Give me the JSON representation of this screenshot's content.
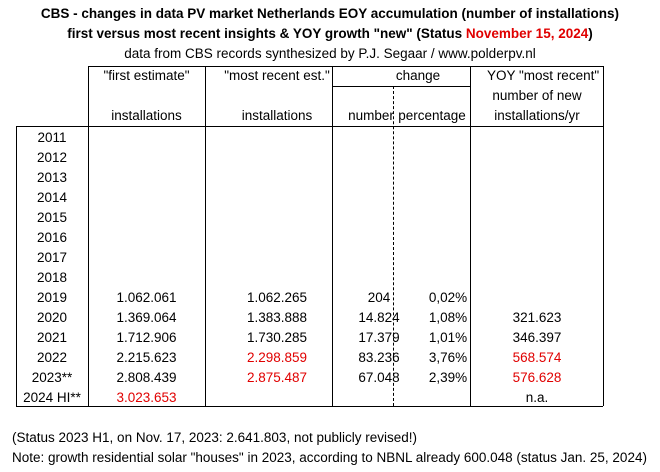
{
  "title": {
    "line1": "CBS - changes in data PV market Netherlands EOY accumulation (number of installations)",
    "line2_prefix": "first versus most recent insights & YOY growth \"new\" (Status ",
    "line2_status_date": "November 15, 2024",
    "line2_suffix": ")",
    "line3": "data from CBS records synthesized by P.J. Segaar / www.polderpv.nl"
  },
  "header": {
    "first_estimate": "\"first estimate\"",
    "most_recent_est": "\"most recent est.\"",
    "change": "change",
    "yoy_line1": "YOY \"most recent\"",
    "yoy_line2": "number  of new",
    "installations_first": "installations",
    "installations_recent": "installations",
    "number": "number",
    "percentage": "percentage",
    "yoy_line3": "installations/yr"
  },
  "colors": {
    "highlight": "#e00000",
    "text": "#000000"
  },
  "rows": [
    {
      "year": "2011",
      "first": "",
      "recent": "",
      "number": "",
      "pct": "",
      "yoy": ""
    },
    {
      "year": "2012",
      "first": "",
      "recent": "",
      "number": "",
      "pct": "",
      "yoy": ""
    },
    {
      "year": "2013",
      "first": "",
      "recent": "",
      "number": "",
      "pct": "",
      "yoy": ""
    },
    {
      "year": "2014",
      "first": "",
      "recent": "",
      "number": "",
      "pct": "",
      "yoy": ""
    },
    {
      "year": "2015",
      "first": "",
      "recent": "",
      "number": "",
      "pct": "",
      "yoy": ""
    },
    {
      "year": "2016",
      "first": "",
      "recent": "",
      "number": "",
      "pct": "",
      "yoy": ""
    },
    {
      "year": "2017",
      "first": "",
      "recent": "",
      "number": "",
      "pct": "",
      "yoy": ""
    },
    {
      "year": "2018",
      "first": "",
      "recent": "",
      "number": "",
      "pct": "",
      "yoy": ""
    },
    {
      "year": "2019",
      "first": "1.062.061",
      "recent": "1.062.265",
      "number": "204",
      "pct": "0,02%",
      "yoy": ""
    },
    {
      "year": "2020",
      "first": "1.369.064",
      "recent": "1.383.888",
      "number": "14.824",
      "pct": "1,08%",
      "yoy": "321.623"
    },
    {
      "year": "2021",
      "first": "1.712.906",
      "recent": "1.730.285",
      "number": "17.379",
      "pct": "1,01%",
      "yoy": "346.397"
    },
    {
      "year": "2022",
      "first": "2.215.623",
      "recent": "2.298.859",
      "number": "83.236",
      "pct": "3,76%",
      "yoy": "568.574",
      "recent_red": true,
      "yoy_red": true
    },
    {
      "year": "2023**",
      "first": "2.808.439",
      "recent": "2.875.487",
      "number": "67.048",
      "pct": "2,39%",
      "yoy": "576.628",
      "recent_red": true,
      "yoy_red": true
    },
    {
      "year": "2024 HI**",
      "first": "3.023.653",
      "recent": "",
      "number": "",
      "pct": "",
      "yoy": "n.a.",
      "first_red": true
    }
  ],
  "notes": {
    "line1": "(Status 2023 H1, on Nov. 17, 2023: 2.641.803, not publicly revised!)",
    "line2": "Note: growth residential solar \"houses\" in 2023, according to NBNL already 600.048 (status Jan. 25, 2024)"
  }
}
